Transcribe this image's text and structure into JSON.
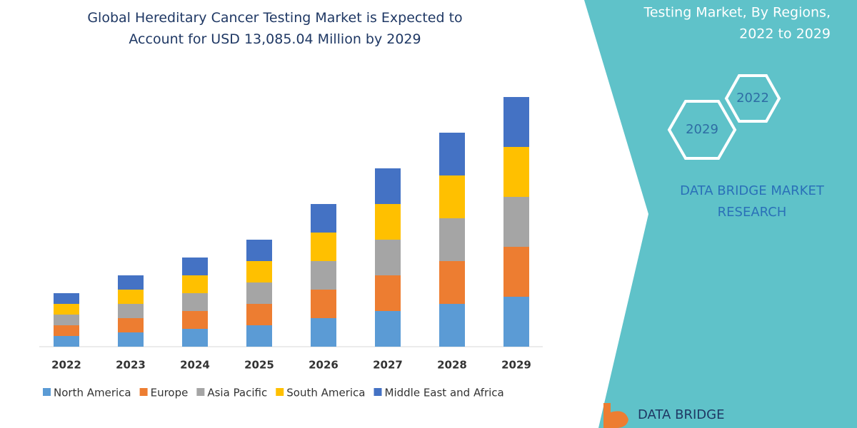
{
  "chart_data": {
    "type": "bar",
    "stacked": true,
    "title": "Global Hereditary Cancer Testing Market is Expected to Account for USD 13,085.04 Million by 2029",
    "categories": [
      "2022",
      "2023",
      "2024",
      "2025",
      "2026",
      "2027",
      "2028",
      "2029"
    ],
    "series": [
      {
        "name": "North America",
        "color": "#5b9bd5",
        "values": [
          15,
          20,
          25,
          30,
          40,
          50,
          60,
          70
        ]
      },
      {
        "name": "Europe",
        "color": "#ed7d31",
        "values": [
          15,
          20,
          25,
          30,
          40,
          50,
          60,
          70
        ]
      },
      {
        "name": "Asia Pacific",
        "color": "#a5a5a5",
        "values": [
          15,
          20,
          25,
          30,
          40,
          50,
          60,
          70
        ]
      },
      {
        "name": "South America",
        "color": "#ffc000",
        "values": [
          15,
          20,
          25,
          30,
          40,
          50,
          60,
          70
        ]
      },
      {
        "name": "Middle East and Africa",
        "color": "#4472c4",
        "values": [
          15,
          20,
          25,
          30,
          40,
          50,
          60,
          70
        ]
      }
    ]
  },
  "panel": {
    "heading_lines": [
      "Testing Market, By Regions,",
      "2022 to 2029"
    ],
    "hex_labels": [
      "2022",
      "2029"
    ],
    "brand_lines": [
      "DATA BRIDGE MARKET",
      "RESEARCH"
    ],
    "logo_text": "DATA BRIDGE"
  }
}
